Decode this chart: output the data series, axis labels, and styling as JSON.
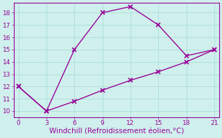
{
  "line1_x": [
    0,
    3,
    6,
    9,
    12,
    15,
    18,
    21
  ],
  "line1_y": [
    12,
    10,
    15,
    18,
    18.5,
    17,
    14.5,
    15
  ],
  "line2_x": [
    0,
    3,
    6,
    9,
    12,
    15,
    18,
    21
  ],
  "line2_y": [
    12,
    10,
    10.8,
    11.7,
    12.5,
    13.2,
    14.0,
    15
  ],
  "color": "#990099",
  "bg_color": "#cff0ec",
  "grid_color": "#aaddd8",
  "spine_color": "#990099",
  "xlabel": "Windchill (Refroidissement éolien,°C)",
  "xlim": [
    -0.5,
    21.5
  ],
  "ylim": [
    9.5,
    18.8
  ],
  "xticks": [
    0,
    3,
    6,
    9,
    12,
    15,
    18,
    21
  ],
  "yticks": [
    10,
    11,
    12,
    13,
    14,
    15,
    16,
    17,
    18
  ],
  "marker": "x",
  "markersize": 4,
  "markeredgewidth": 1.2,
  "linewidth": 1.0,
  "xlabel_fontsize": 7.5,
  "tick_fontsize": 6.5
}
